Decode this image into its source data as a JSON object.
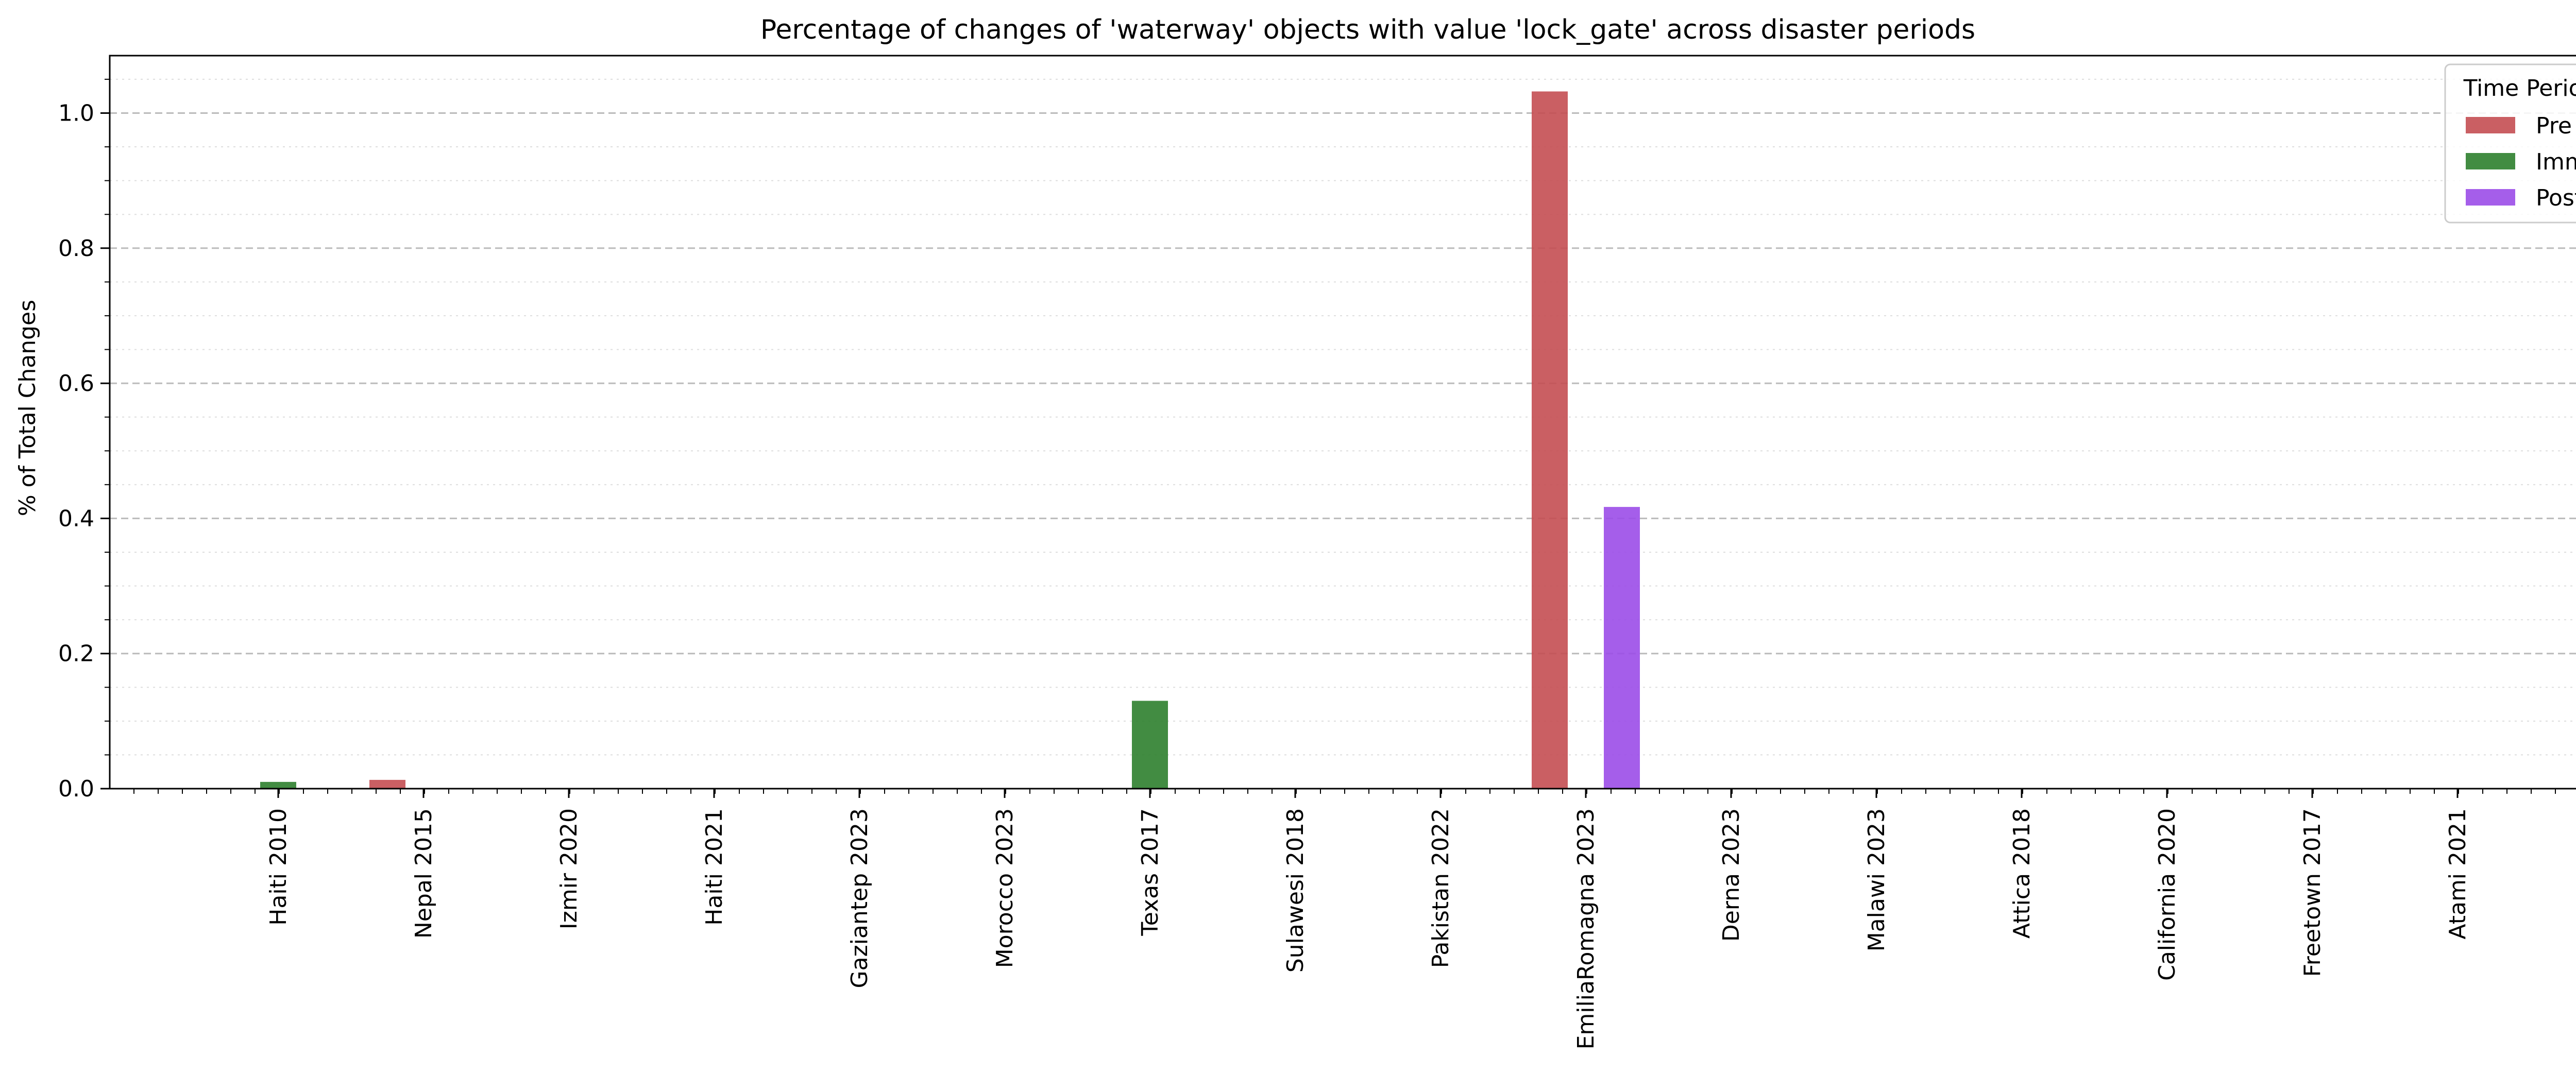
{
  "chart_data": {
    "type": "bar",
    "title": "Percentage of changes of 'waterway' objects with value 'lock_gate' across disaster periods",
    "xlabel": "",
    "ylabel": "% of Total Changes",
    "categories": [
      "Haiti 2010",
      "Nepal 2015",
      "Izmir 2020",
      "Haiti 2021",
      "Gaziantep 2023",
      "Morocco 2023",
      "Texas 2017",
      "Sulawesi 2018",
      "Pakistan 2022",
      "EmiliaRomagna 2023",
      "Derna 2023",
      "Malawi 2023",
      "Attica 2018",
      "California 2020",
      "Freetown 2017",
      "Atami 2021"
    ],
    "series": [
      {
        "name": "Pre",
        "color": "#c44e52",
        "values": [
          0,
          0.013,
          0,
          0,
          0,
          0,
          0,
          0,
          0,
          1.032,
          0,
          0,
          0,
          0,
          0,
          0
        ]
      },
      {
        "name": "Imm",
        "color": "#2d7f2d",
        "values": [
          0.01,
          0,
          0,
          0,
          0,
          0,
          0.13,
          0,
          0,
          0,
          0,
          0,
          0,
          0,
          0,
          0
        ]
      },
      {
        "name": "Post",
        "color": "#9b4de8",
        "values": [
          0,
          0,
          0,
          0,
          0,
          0,
          0,
          0,
          0,
          0.417,
          0,
          0,
          0,
          0,
          0,
          0
        ]
      }
    ],
    "ylim": [
      0,
      1.085
    ],
    "yticks": [
      "0.0",
      "0.2",
      "0.4",
      "0.6",
      "0.8",
      "1.0"
    ],
    "grid": true,
    "legend": {
      "title": "Time Period",
      "position": "top-right"
    }
  }
}
